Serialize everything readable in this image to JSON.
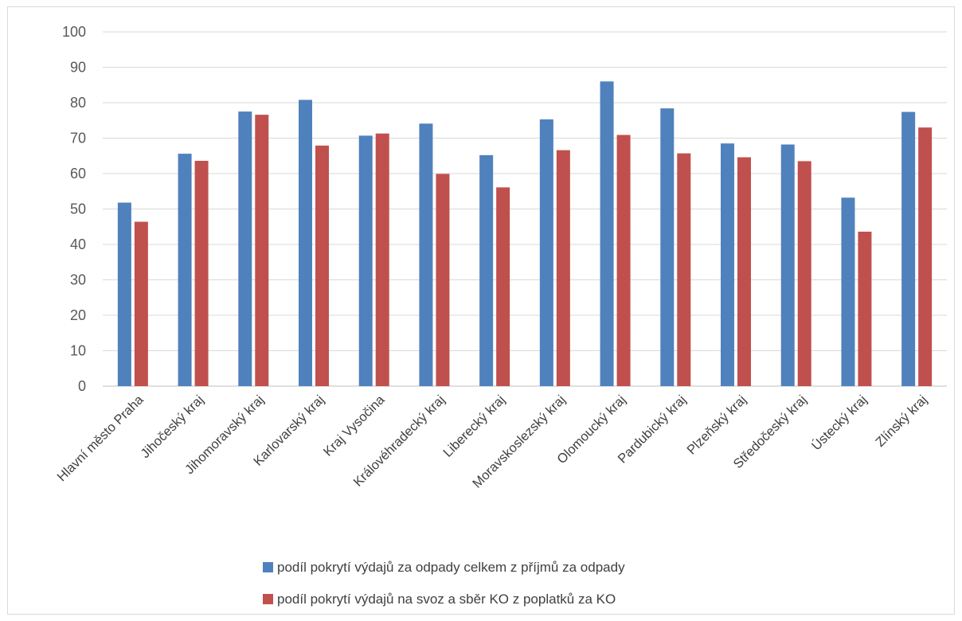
{
  "chart_data": {
    "type": "bar",
    "categories": [
      "Hlavní město Praha",
      "Jihočeský kraj",
      "Jihomoravský kraj",
      "Karlovarský kraj",
      "Kraj Vysočina",
      "Královéhradecký kraj",
      "Liberecký kraj",
      "Moravskoslezský kraj",
      "Olomoucký kraj",
      "Pardubický kraj",
      "Plzeňský kraj",
      "Středočeský kraj",
      "Ústecký kraj",
      "Zlínský kraj"
    ],
    "series": [
      {
        "name": "podíl pokrytí výdajů za odpady celkem z příjmů za odpady",
        "color": "#4f81bd",
        "values": [
          51.8,
          65.6,
          77.5,
          80.8,
          70.7,
          74.1,
          65.2,
          75.3,
          86.0,
          78.4,
          68.5,
          68.2,
          53.2,
          77.4
        ]
      },
      {
        "name": "podíl pokrytí výdajů na svoz a sběr KO z poplatků za KO",
        "color": "#c0504d",
        "values": [
          46.4,
          63.6,
          76.6,
          67.9,
          71.3,
          59.9,
          56.1,
          66.6,
          70.9,
          65.7,
          64.6,
          63.5,
          43.6,
          73.0
        ]
      }
    ],
    "yticks": [
      "0",
      "10",
      "20",
      "30",
      "40",
      "50",
      "60",
      "70",
      "80",
      "90",
      "100"
    ],
    "ylim": [
      0,
      100
    ],
    "grid": true,
    "legend_position": "bottom",
    "title": "",
    "xlabel": "",
    "ylabel": ""
  }
}
